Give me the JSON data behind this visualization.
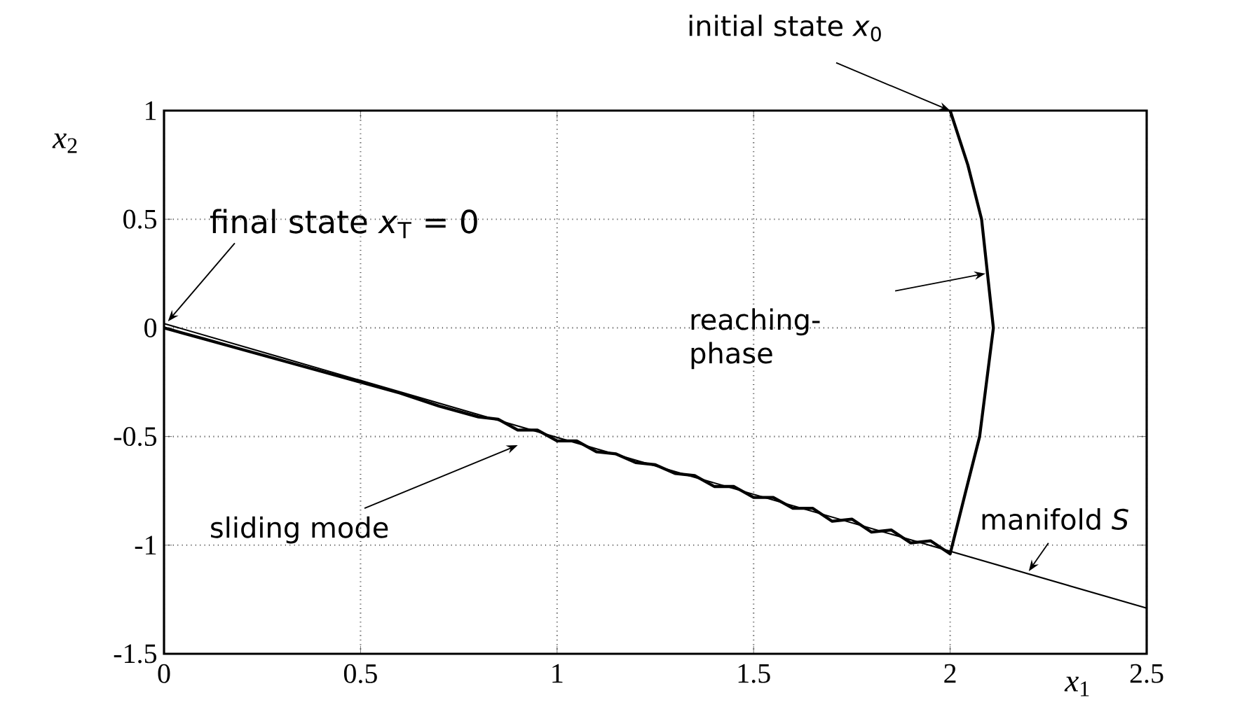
{
  "chart_data": {
    "type": "line",
    "xlabel": "*x*$_{1}$",
    "ylabel": "*x*$_{2}$",
    "xlim": [
      0,
      2.5
    ],
    "ylim": [
      -1.5,
      1
    ],
    "xticks": [
      0,
      0.5,
      1,
      1.5,
      2,
      2.5
    ],
    "yticks": [
      -1.5,
      -1,
      -0.5,
      0,
      0.5,
      1
    ],
    "grid": true,
    "marker": "none",
    "line_style": "solid",
    "series": [
      {
        "color": "#000000",
        "x": [
          2.0,
          2.045,
          2.08,
          2.11,
          2.075,
          2.04,
          2.0,
          1.95,
          1.9,
          1.85,
          1.8,
          1.75,
          1.7,
          1.65,
          1.6,
          1.55,
          1.5,
          1.45,
          1.4,
          1.35,
          1.3,
          1.25,
          1.2,
          1.15,
          1.1,
          1.05,
          1.0,
          0.95,
          0.9,
          0.85,
          0.8,
          0.7,
          0.6,
          0.5,
          0.4,
          0.3,
          0.2,
          0.1,
          0.0
        ],
        "values": [
          1.0,
          0.75,
          0.5,
          0.0,
          -0.5,
          -0.75,
          -1.04,
          -0.98,
          -0.99,
          -0.93,
          -0.94,
          -0.88,
          -0.89,
          -0.83,
          -0.83,
          -0.78,
          -0.78,
          -0.73,
          -0.73,
          -0.68,
          -0.67,
          -0.63,
          -0.62,
          -0.58,
          -0.57,
          -0.52,
          -0.52,
          -0.47,
          -0.47,
          -0.42,
          -0.41,
          -0.36,
          -0.3,
          -0.25,
          -0.2,
          -0.15,
          -0.1,
          -0.05,
          0.0
        ]
      },
      {
        "color": "#000000",
        "x": [
          0,
          2.5
        ],
        "values": [
          0.02,
          -1.29
        ]
      }
    ],
    "annotations": [
      {
        "text": "initial state *x*$_{0}$",
        "x": 2.0,
        "y": 1.0
      },
      {
        "text": "final state *x*$_{T}$ = 0",
        "x": 0.01,
        "y": 0.03
      },
      "reaching-phase",
      "sliding mode",
      {
        "text": "manifold *S*",
        "x": 2.2,
        "y": -1.12
      }
    ]
  }
}
